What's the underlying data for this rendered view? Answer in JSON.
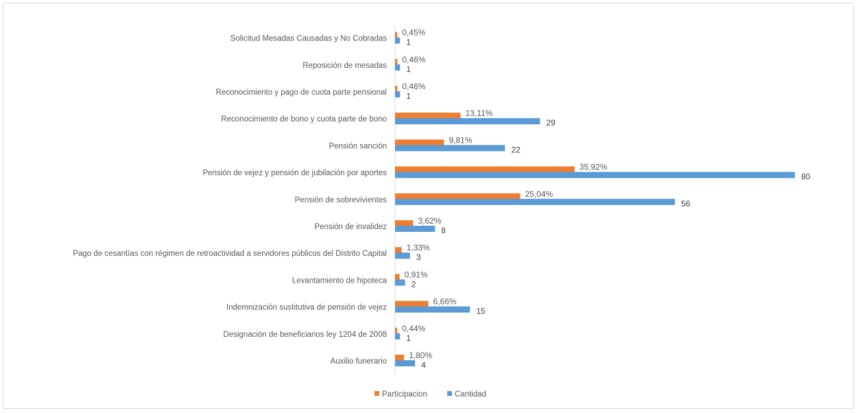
{
  "chart_data": {
    "type": "bar",
    "orientation": "horizontal",
    "categories": [
      "Solicitud Mesadas Causadas y No Cobradas",
      "Reposición de mesadas",
      "Reconocimiento y pago de cuota parte pensional",
      "Reconocimiento de bono y cuota parte de bono",
      "Pensión sanción",
      "Pensión de vejez y pensión de jubilación por aportes",
      "Pensión de sobrevivientes",
      "Pensión de invalidez",
      "Pago de cesantías con régimen de retroactividad a servidores públicos del Distrito Capital",
      "Levantamiento de hipoteca",
      "Indemnización sustitutiva de pensión de vejez",
      "Designación de beneficiarios ley 1204 de 2008",
      "Auxilio funerario"
    ],
    "series": [
      {
        "name": "Participacion",
        "color": "#ed7d31",
        "values": [
          0.45,
          0.46,
          0.46,
          13.11,
          9.81,
          35.92,
          25.04,
          3.62,
          1.33,
          0.91,
          6.66,
          0.44,
          1.8
        ],
        "labels": [
          "0,45%",
          "0,46%",
          "0,46%",
          "13,11%",
          "9,81%",
          "35,92%",
          "25,04%",
          "3,62%",
          "1,33%",
          "0,91%",
          "6,66%",
          "0,44%",
          "1,80%"
        ]
      },
      {
        "name": "Cantidad",
        "color": "#5b9bd5",
        "values": [
          1,
          1,
          1,
          29,
          22,
          80,
          56,
          8,
          3,
          2,
          15,
          1,
          4
        ],
        "labels": [
          "1",
          "1",
          "1",
          "29",
          "22",
          "80",
          "56",
          "8",
          "3",
          "2",
          "15",
          "1",
          "4"
        ]
      }
    ],
    "xlim": [
      0,
      80
    ],
    "grid": false,
    "legend_position": "bottom"
  }
}
